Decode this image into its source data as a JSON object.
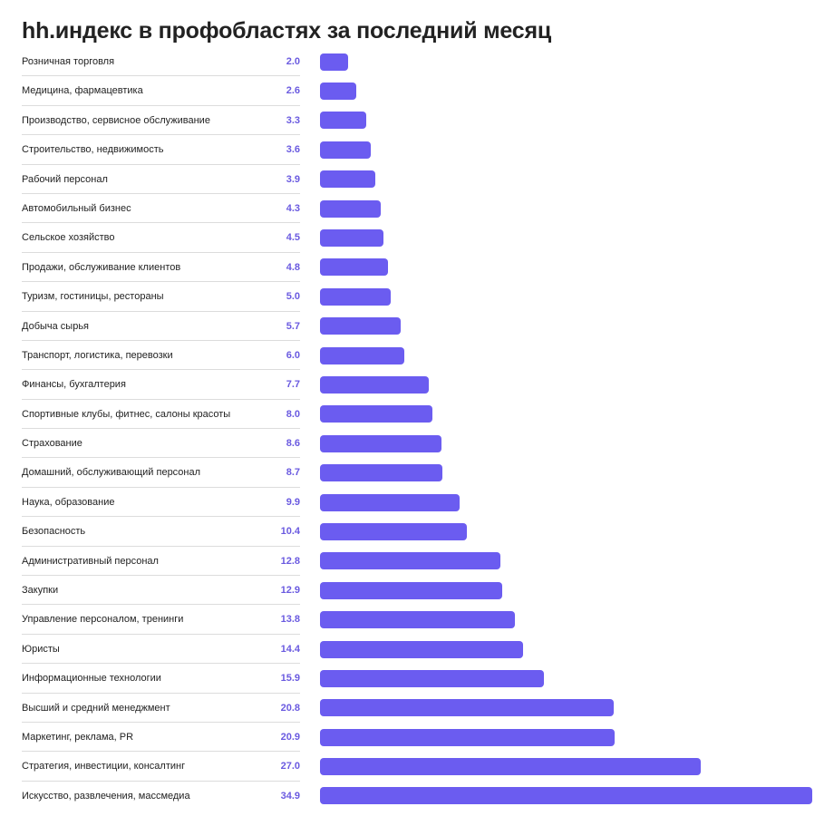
{
  "title": "hh.индекс в профобластях за последний месяц",
  "colors": {
    "bar": "#6b5cf0",
    "value_text": "#6a5ae0",
    "label_text": "#222222",
    "divider": "#dcdcdc"
  },
  "chart_data": {
    "type": "bar",
    "orientation": "horizontal",
    "title": "hh.индекс в профобластях за последний месяц",
    "xlabel": "",
    "ylabel": "",
    "xlim": [
      0,
      34.9
    ],
    "grid": false,
    "legend": "none",
    "categories": [
      "Розничная торговля",
      "Медицина, фармацевтика",
      "Производство, сервисное обслуживание",
      "Строительство, недвижимость",
      "Рабочий персонал",
      "Автомобильный бизнес",
      "Сельское хозяйство",
      "Продажи, обслуживание клиентов",
      "Туризм, гостиницы, рестораны",
      "Добыча сырья",
      "Транспорт, логистика, перевозки",
      "Финансы, бухгалтерия",
      "Спортивные клубы, фитнес, салоны красоты",
      "Страхование",
      "Домашний, обслуживающий персонал",
      "Наука, образование",
      "Безопасность",
      "Административный персонал",
      "Закупки",
      "Управление персоналом, тренинги",
      "Юристы",
      "Информационные технологии",
      "Высший и средний менеджмент",
      "Маркетинг, реклама, PR",
      "Стратегия, инвестиции, консалтинг",
      "Искусство, развлечения, массмедиа"
    ],
    "values": [
      2.0,
      2.6,
      3.3,
      3.6,
      3.9,
      4.3,
      4.5,
      4.8,
      5.0,
      5.7,
      6.0,
      7.7,
      8.0,
      8.6,
      8.7,
      9.9,
      10.4,
      12.8,
      12.9,
      13.8,
      14.4,
      15.9,
      20.8,
      20.9,
      27.0,
      34.9
    ],
    "value_labels": [
      "2.0",
      "2.6",
      "3.3",
      "3.6",
      "3.9",
      "4.3",
      "4.5",
      "4.8",
      "5.0",
      "5.7",
      "6.0",
      "7.7",
      "8.0",
      "8.6",
      "8.7",
      "9.9",
      "10.4",
      "12.8",
      "12.9",
      "13.8",
      "14.4",
      "15.9",
      "20.8",
      "20.9",
      "27.0",
      "34.9"
    ]
  }
}
